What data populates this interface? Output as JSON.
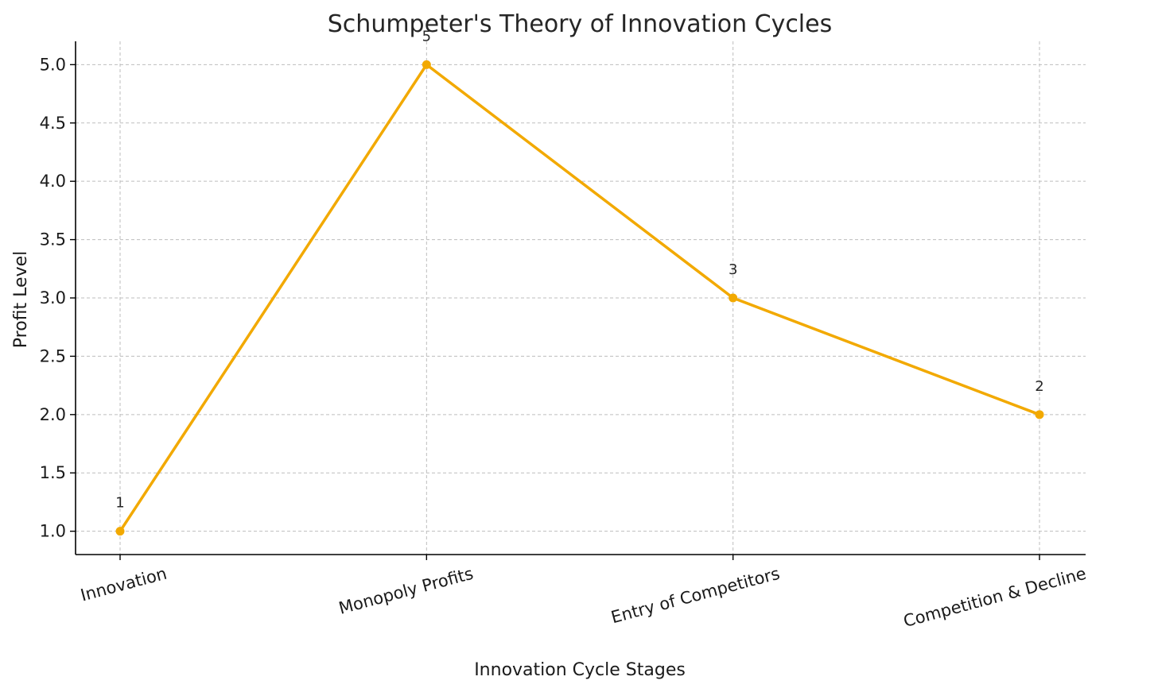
{
  "chart_data": {
    "type": "line",
    "title": "Schumpeter's Theory of Innovation Cycles",
    "xlabel": "Innovation Cycle Stages",
    "ylabel": "Profit Level",
    "categories": [
      "Innovation",
      "Monopoly Profits",
      "Entry of Competitors",
      "Competition & Decline"
    ],
    "series": [
      {
        "values": [
          1,
          5,
          3,
          2
        ]
      }
    ],
    "data_labels": [
      "1",
      "5",
      "3",
      "2"
    ],
    "yticks": [
      1.0,
      1.5,
      2.0,
      2.5,
      3.0,
      3.5,
      4.0,
      4.5,
      5.0
    ],
    "ytick_labels": [
      "1.0",
      "1.5",
      "2.0",
      "2.5",
      "3.0",
      "3.5",
      "4.0",
      "4.5",
      "5.0"
    ],
    "ylim": [
      0.8,
      5.2
    ],
    "grid": true,
    "line_color": "#F2A900",
    "marker": "circle"
  }
}
